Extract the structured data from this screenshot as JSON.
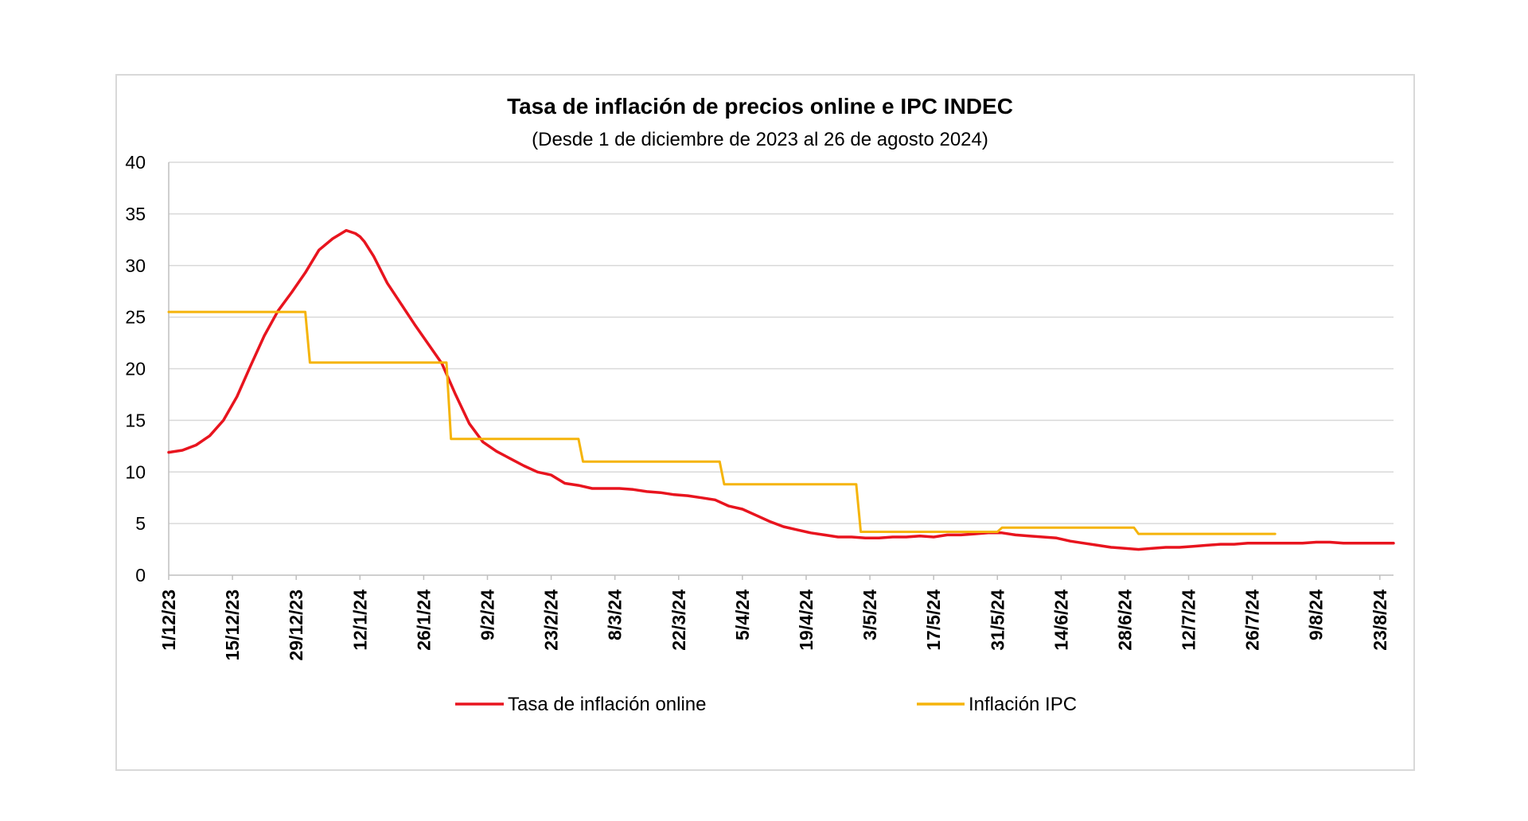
{
  "chart_data": {
    "type": "line",
    "title": "Tasa de inflación de precios online e IPC INDEC",
    "subtitle": "(Desde 1 de diciembre de 2023 al 26 de agosto 2024)",
    "xlabel": "",
    "ylabel": "",
    "ylim": [
      0,
      40
    ],
    "yticks": [
      "0",
      "5",
      "10",
      "15",
      "20",
      "25",
      "30",
      "35",
      "40"
    ],
    "xlim_days": [
      0,
      269
    ],
    "x_tick_labels": [
      "1/12/23",
      "15/12/23",
      "29/12/23",
      "12/1/24",
      "26/1/24",
      "9/2/24",
      "23/2/24",
      "8/3/24",
      "22/3/24",
      "5/4/24",
      "19/4/24",
      "3/5/24",
      "17/5/24",
      "31/5/24",
      "14/6/24",
      "28/6/24",
      "12/7/24",
      "26/7/24",
      "9/8/24",
      "23/8/24"
    ],
    "x_tick_days": [
      0,
      14,
      28,
      42,
      56,
      70,
      84,
      98,
      112,
      126,
      140,
      154,
      168,
      182,
      196,
      210,
      224,
      238,
      252,
      266
    ],
    "grid": true,
    "legend_position": "bottom",
    "series": [
      {
        "name": "Tasa de inflación online",
        "color": "#e8141e",
        "x_days": [
          0,
          3,
          6,
          9,
          12,
          15,
          18,
          21,
          24,
          27,
          30,
          33,
          36,
          39,
          41,
          42,
          43,
          45,
          48,
          51,
          54,
          57,
          60,
          63,
          66,
          69,
          72,
          75,
          78,
          81,
          84,
          87,
          90,
          93,
          96,
          99,
          102,
          105,
          108,
          111,
          114,
          117,
          120,
          123,
          126,
          129,
          132,
          135,
          138,
          141,
          144,
          147,
          150,
          153,
          156,
          159,
          162,
          165,
          168,
          171,
          174,
          177,
          180,
          183,
          186,
          189,
          192,
          195,
          198,
          201,
          204,
          207,
          210,
          213,
          216,
          219,
          222,
          225,
          228,
          231,
          234,
          237,
          240,
          243,
          246,
          249,
          252,
          255,
          258,
          261,
          264,
          267,
          269
        ],
        "values": [
          11.9,
          12.1,
          12.6,
          13.5,
          15.0,
          17.3,
          20.3,
          23.2,
          25.6,
          27.4,
          29.3,
          31.5,
          32.6,
          33.4,
          33.1,
          32.8,
          32.3,
          30.9,
          28.3,
          26.3,
          24.3,
          22.4,
          20.5,
          17.5,
          14.7,
          12.9,
          12.0,
          11.3,
          10.6,
          10.0,
          9.7,
          8.9,
          8.7,
          8.4,
          8.4,
          8.4,
          8.3,
          8.1,
          8.0,
          7.8,
          7.7,
          7.5,
          7.3,
          6.7,
          6.4,
          5.8,
          5.2,
          4.7,
          4.4,
          4.1,
          3.9,
          3.7,
          3.7,
          3.6,
          3.6,
          3.7,
          3.7,
          3.8,
          3.7,
          3.9,
          3.9,
          4.0,
          4.1,
          4.1,
          3.9,
          3.8,
          3.7,
          3.6,
          3.3,
          3.1,
          2.9,
          2.7,
          2.6,
          2.5,
          2.6,
          2.7,
          2.7,
          2.8,
          2.9,
          3.0,
          3.0,
          3.1,
          3.1,
          3.1,
          3.1,
          3.1,
          3.2,
          3.2,
          3.1,
          3.1,
          3.1,
          3.1,
          3.1
        ]
      },
      {
        "name": "Inflación IPC",
        "color": "#f5b40a",
        "type": "step",
        "x_days": [
          0,
          30,
          31,
          61,
          62,
          90,
          91,
          121,
          122,
          151,
          152,
          182,
          183,
          212,
          213,
          243
        ],
        "values": [
          25.5,
          25.5,
          20.6,
          20.6,
          13.2,
          13.2,
          11.0,
          11.0,
          8.8,
          8.8,
          4.2,
          4.2,
          4.6,
          4.6,
          4.0,
          4.0
        ]
      }
    ]
  }
}
